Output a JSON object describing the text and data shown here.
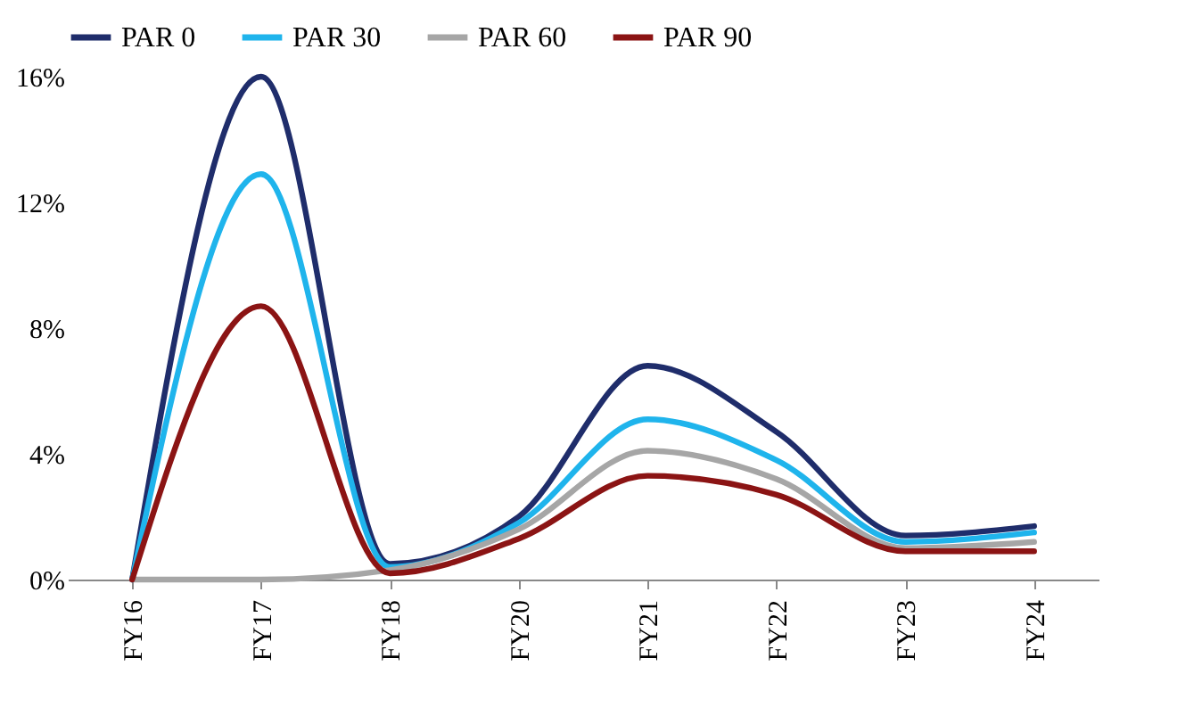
{
  "chart_data": {
    "type": "line",
    "categories": [
      "FY16",
      "FY17",
      "FY18",
      "FY20",
      "FY21",
      "FY22",
      "FY23",
      "FY24"
    ],
    "series": [
      {
        "name": "PAR 0",
        "color": "#1f2d6b",
        "values": [
          0,
          16,
          0.5,
          2.0,
          6.8,
          4.7,
          1.4,
          1.7
        ]
      },
      {
        "name": "PAR 30",
        "color": "#1fb4ec",
        "values": [
          0,
          12.9,
          0.4,
          1.8,
          5.1,
          3.8,
          1.2,
          1.5
        ]
      },
      {
        "name": "PAR 60",
        "color": "#a6a6a6",
        "values": [
          0,
          0,
          0.3,
          1.6,
          4.1,
          3.2,
          1.0,
          1.2
        ]
      },
      {
        "name": "PAR 90",
        "color": "#8b1414",
        "values": [
          0,
          8.7,
          0.2,
          1.3,
          3.3,
          2.7,
          0.9,
          0.9
        ]
      }
    ],
    "ylim": [
      0,
      16
    ],
    "yticks": [
      {
        "value": 0,
        "label": "0%"
      },
      {
        "value": 4,
        "label": "4%"
      },
      {
        "value": 8,
        "label": "8%"
      },
      {
        "value": 12,
        "label": "12%"
      },
      {
        "value": 16,
        "label": "16%"
      }
    ],
    "grid": false,
    "legend": "top",
    "marker": "none",
    "line_style": "solid"
  }
}
